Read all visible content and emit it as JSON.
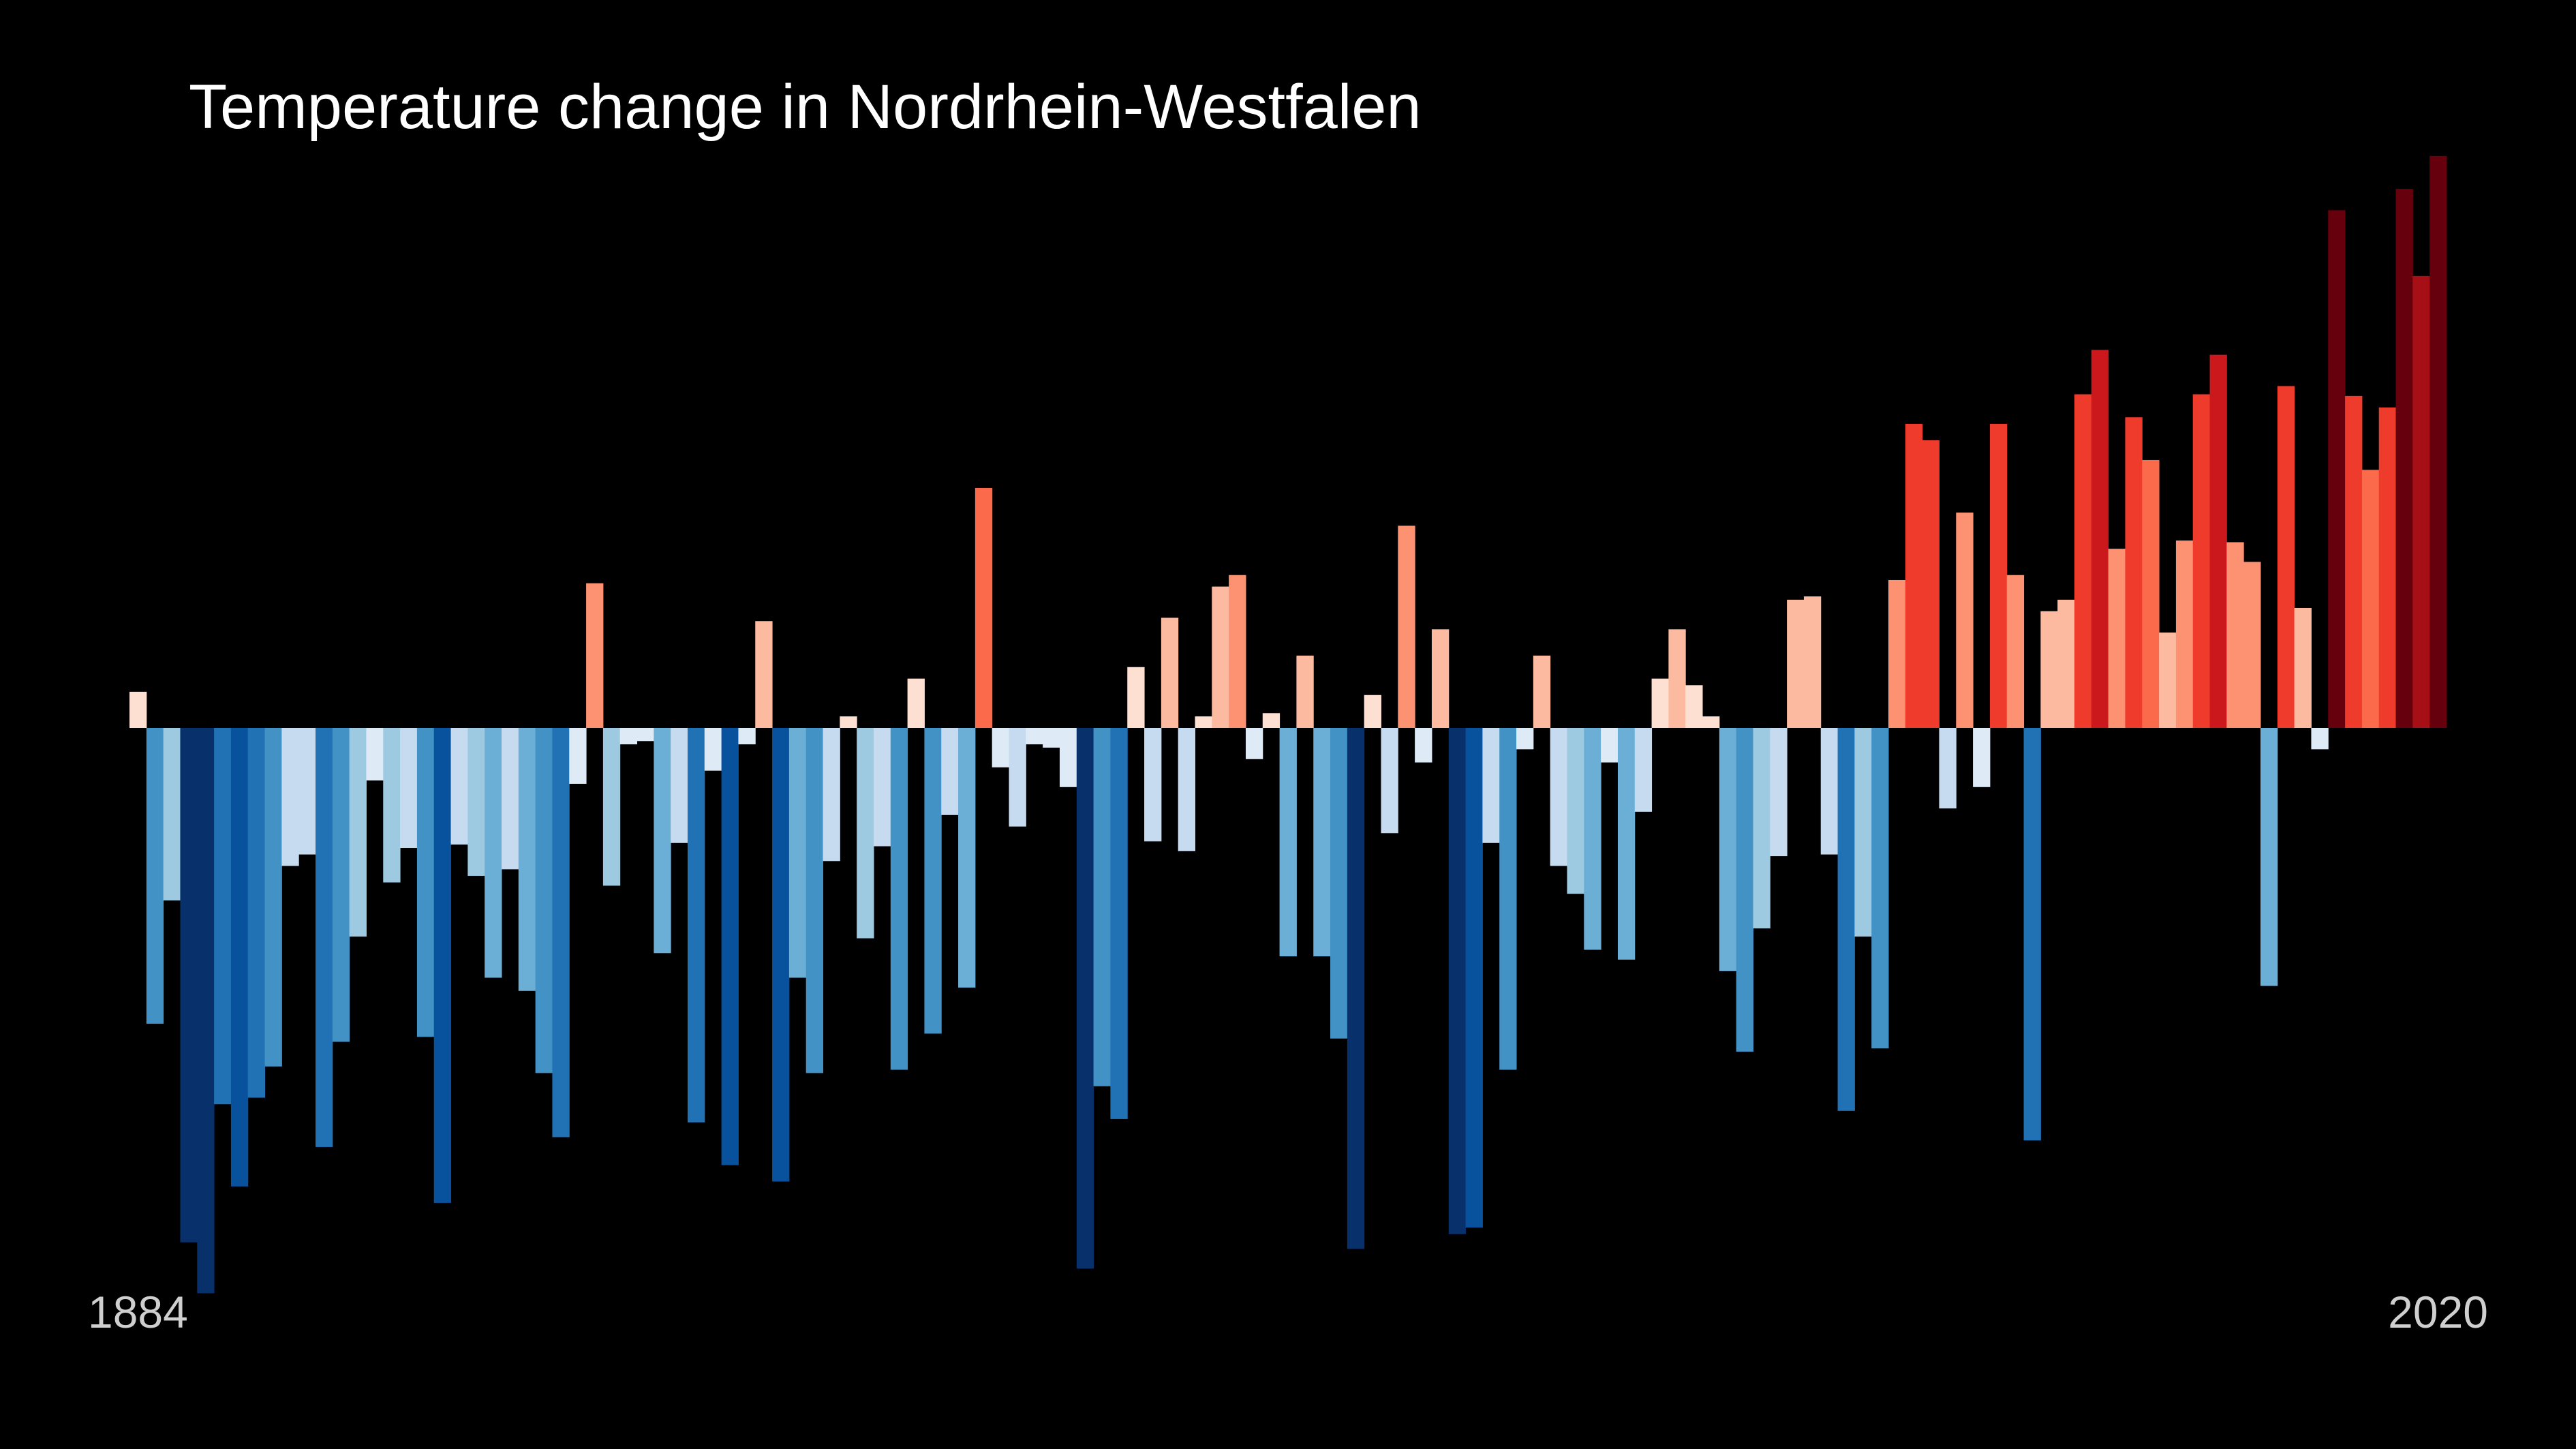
{
  "chart_data": {
    "type": "bar",
    "title": "Temperature change in Nordrhein-Westfalen",
    "categories": [
      "1884",
      null,
      null,
      null,
      null,
      null,
      null,
      null,
      null,
      null,
      null,
      null,
      null,
      null,
      null,
      null,
      null,
      null,
      null,
      null,
      null,
      null,
      null,
      null,
      null,
      null,
      null,
      null,
      null,
      null,
      null,
      null,
      null,
      null,
      null,
      null,
      null,
      null,
      null,
      null,
      null,
      null,
      null,
      null,
      null,
      null,
      null,
      null,
      null,
      null,
      null,
      null,
      null,
      null,
      null,
      null,
      null,
      null,
      null,
      null,
      null,
      null,
      null,
      null,
      null,
      null,
      null,
      null,
      null,
      null,
      null,
      null,
      null,
      null,
      null,
      null,
      null,
      null,
      null,
      null,
      null,
      null,
      null,
      null,
      null,
      null,
      null,
      null,
      null,
      null,
      null,
      null,
      null,
      null,
      null,
      null,
      null,
      null,
      null,
      null,
      null,
      null,
      null,
      null,
      null,
      null,
      null,
      null,
      null,
      null,
      null,
      null,
      null,
      null,
      null,
      null,
      null,
      null,
      null,
      null,
      null,
      null,
      null,
      null,
      null,
      null,
      null,
      null,
      null,
      null,
      null,
      null,
      null,
      null,
      null,
      null,
      "2020"
    ],
    "values": [
      0.22,
      -1.8,
      -1.05,
      -3.13,
      -3.44,
      -2.29,
      -2.79,
      -2.25,
      -2.06,
      -0.84,
      -0.77,
      -2.55,
      -1.91,
      -1.27,
      -0.32,
      -0.94,
      -0.73,
      -1.88,
      -2.89,
      -0.71,
      -0.9,
      -1.52,
      -0.86,
      -1.6,
      -2.1,
      -2.49,
      -0.34,
      0.88,
      -0.96,
      -0.1,
      -0.08,
      -1.37,
      -0.7,
      -2.4,
      -0.26,
      -2.66,
      -0.1,
      0.65,
      -2.76,
      -1.52,
      -2.1,
      -0.81,
      0.07,
      -1.28,
      -0.72,
      -2.08,
      0.3,
      -1.86,
      -0.53,
      -1.58,
      1.46,
      -0.24,
      -0.6,
      -0.1,
      -0.12,
      -0.36,
      -3.29,
      -2.18,
      -2.38,
      0.37,
      -0.69,
      0.67,
      -0.75,
      0.07,
      0.86,
      0.93,
      -0.19,
      0.09,
      -1.39,
      0.44,
      -1.39,
      -1.89,
      -3.17,
      0.2,
      -0.64,
      1.23,
      -0.21,
      0.6,
      -3.08,
      -3.04,
      -0.7,
      -2.08,
      -0.13,
      0.44,
      -0.84,
      -1.01,
      -1.35,
      -0.21,
      -1.41,
      -0.51,
      0.3,
      0.6,
      0.26,
      0.07,
      -1.48,
      -1.97,
      -1.22,
      -0.78,
      0.78,
      0.8,
      -0.77,
      -2.33,
      -1.27,
      -1.95,
      0.9,
      1.85,
      1.75,
      -0.49,
      1.31,
      -0.36,
      1.85,
      0.93,
      -2.51,
      0.71,
      0.78,
      2.03,
      2.3,
      1.09,
      1.89,
      1.63,
      0.58,
      1.14,
      2.03,
      2.27,
      1.13,
      1.01,
      -1.57,
      2.08,
      0.73,
      -0.13,
      3.15,
      2.02,
      1.57,
      1.95,
      3.28,
      2.75,
      3.48
    ],
    "ylim": [
      -3.5,
      3.5
    ],
    "colormap": [
      "#08306b",
      "#08519c",
      "#2171b5",
      "#4292c6",
      "#6baed6",
      "#9ecae1",
      "#c6dbef",
      "#deebf7",
      "#fee0d2",
      "#fcbba1",
      "#fc9272",
      "#fb6a4a",
      "#ef3b2c",
      "#cb181d",
      "#a50f15",
      "#67000d"
    ]
  }
}
